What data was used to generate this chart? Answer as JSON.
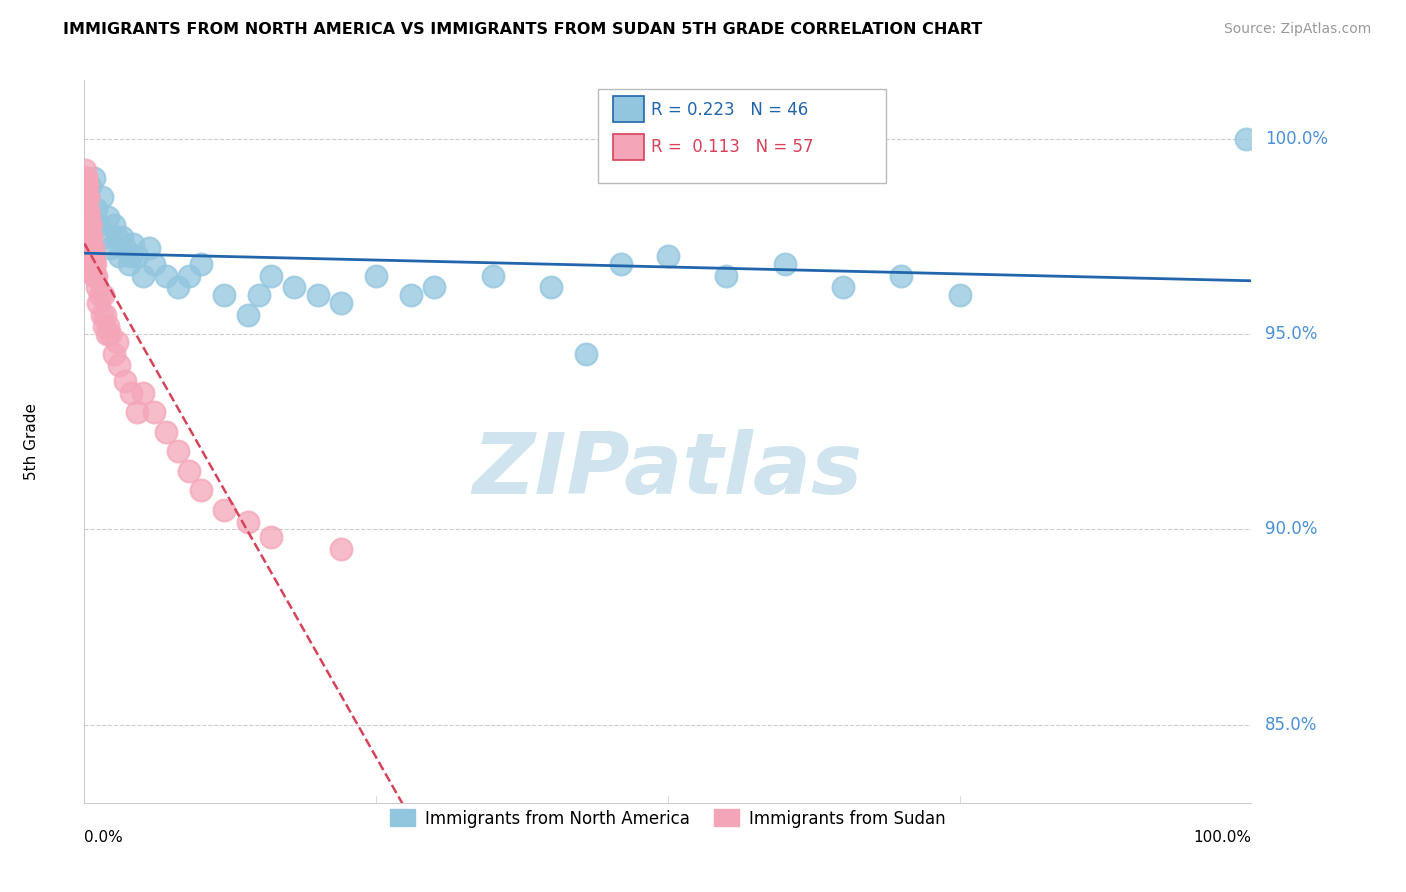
{
  "title": "IMMIGRANTS FROM NORTH AMERICA VS IMMIGRANTS FROM SUDAN 5TH GRADE CORRELATION CHART",
  "source": "Source: ZipAtlas.com",
  "ylabel": "5th Grade",
  "ylabel_right_ticks": [
    100.0,
    95.0,
    90.0,
    85.0
  ],
  "xlim": [
    0.0,
    100.0
  ],
  "ylim": [
    83.0,
    101.5
  ],
  "legend_blue_label": "Immigrants from North America",
  "legend_pink_label": "Immigrants from Sudan",
  "R_blue": 0.223,
  "N_blue": 46,
  "R_pink": 0.113,
  "N_pink": 57,
  "blue_color": "#92c5de",
  "pink_color": "#f4a6b8",
  "trend_blue_color": "#2166ac",
  "trend_pink_color": "#d6425a",
  "watermark": "ZIPatlas",
  "watermark_color": "#d0e4f0",
  "blue_points_x": [
    0.3,
    0.5,
    0.8,
    1.0,
    1.2,
    1.5,
    1.8,
    2.0,
    2.2,
    2.5,
    2.8,
    3.0,
    3.2,
    3.5,
    3.8,
    4.0,
    4.2,
    4.5,
    5.0,
    5.5,
    6.0,
    7.0,
    8.0,
    9.0,
    10.0,
    12.0,
    14.0,
    15.0,
    16.0,
    18.0,
    20.0,
    22.0,
    25.0,
    28.0,
    30.0,
    35.0,
    40.0,
    43.0,
    46.0,
    50.0,
    55.0,
    60.0,
    65.0,
    70.0,
    75.0,
    99.5
  ],
  "blue_points_y": [
    98.5,
    98.8,
    99.0,
    98.2,
    97.8,
    98.5,
    97.5,
    98.0,
    97.2,
    97.8,
    97.5,
    97.0,
    97.5,
    97.2,
    96.8,
    97.0,
    97.3,
    97.0,
    96.5,
    97.2,
    96.8,
    96.5,
    96.2,
    96.5,
    96.8,
    96.0,
    95.5,
    96.0,
    96.5,
    96.2,
    96.0,
    95.8,
    96.5,
    96.0,
    96.2,
    96.5,
    96.2,
    94.5,
    96.8,
    97.0,
    96.5,
    96.8,
    96.2,
    96.5,
    96.0,
    100.0
  ],
  "pink_points_x": [
    0.05,
    0.08,
    0.1,
    0.12,
    0.15,
    0.18,
    0.2,
    0.22,
    0.25,
    0.28,
    0.3,
    0.32,
    0.35,
    0.38,
    0.4,
    0.42,
    0.45,
    0.48,
    0.5,
    0.52,
    0.55,
    0.58,
    0.6,
    0.65,
    0.7,
    0.75,
    0.8,
    0.85,
    0.9,
    0.95,
    1.0,
    1.1,
    1.2,
    1.3,
    1.5,
    1.6,
    1.7,
    1.8,
    1.9,
    2.0,
    2.2,
    2.5,
    2.8,
    3.0,
    3.5,
    4.0,
    4.5,
    5.0,
    6.0,
    7.0,
    8.0,
    9.0,
    10.0,
    12.0,
    14.0,
    16.0,
    22.0
  ],
  "pink_points_y": [
    99.0,
    99.2,
    98.8,
    99.0,
    98.5,
    99.0,
    98.8,
    98.5,
    98.0,
    98.5,
    98.0,
    97.8,
    98.2,
    97.5,
    98.0,
    97.5,
    97.8,
    97.2,
    97.5,
    97.8,
    97.0,
    97.5,
    97.2,
    97.0,
    96.8,
    97.2,
    96.5,
    97.0,
    96.5,
    96.8,
    96.5,
    96.2,
    95.8,
    96.0,
    95.5,
    96.0,
    95.2,
    95.5,
    95.0,
    95.2,
    95.0,
    94.5,
    94.8,
    94.2,
    93.8,
    93.5,
    93.0,
    93.5,
    93.0,
    92.5,
    92.0,
    91.5,
    91.0,
    90.5,
    90.2,
    89.8,
    89.5
  ]
}
